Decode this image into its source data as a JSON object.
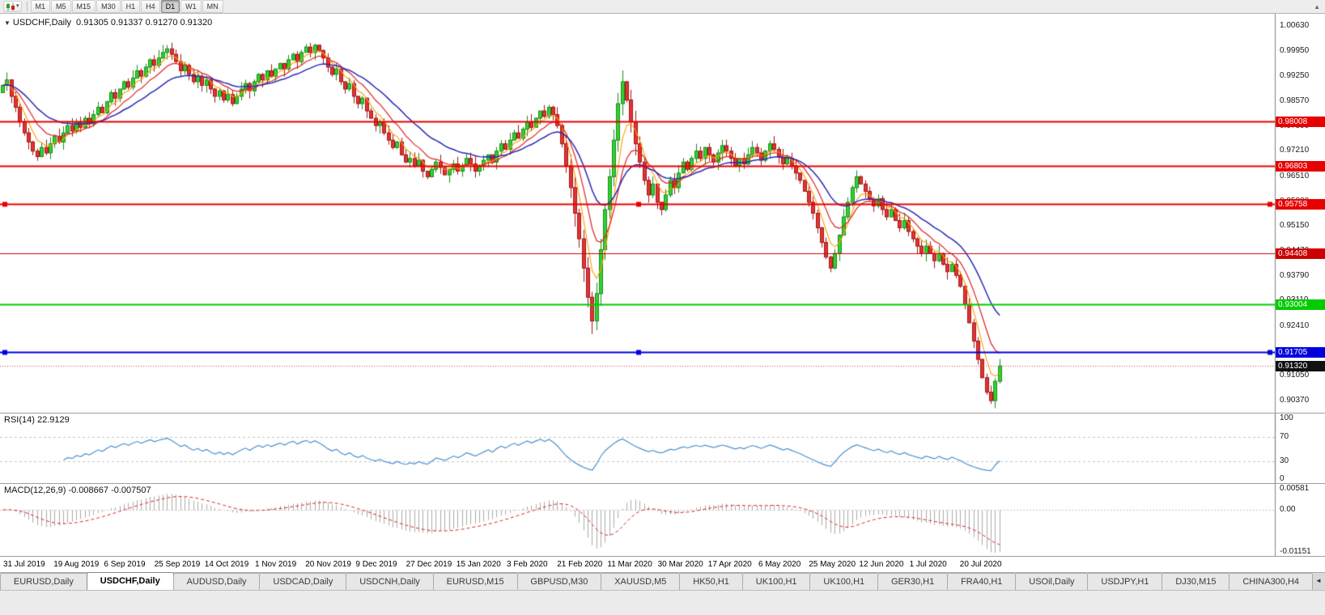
{
  "toolbar": {
    "dropdown_caret": "▾",
    "scroll_up_icon": "▲",
    "timeframes": [
      {
        "label": "M1",
        "active": false
      },
      {
        "label": "M5",
        "active": false
      },
      {
        "label": "M15",
        "active": false
      },
      {
        "label": "M30",
        "active": false
      },
      {
        "label": "H1",
        "active": false
      },
      {
        "label": "H4",
        "active": false
      },
      {
        "label": "D1",
        "active": true
      },
      {
        "label": "W1",
        "active": false
      },
      {
        "label": "MN",
        "active": false
      }
    ]
  },
  "chart": {
    "header": {
      "collapse_icon": "▼",
      "symbol_period": "USDCHF,Daily",
      "ohlc": "0.91305 0.91337 0.91270 0.91320"
    }
  },
  "chart_data": {
    "type": "candlestick+indicators",
    "symbol": "USDCHF",
    "period": "Daily",
    "price_panel": {
      "price_top": 1.0096,
      "price_bottom": 0.9004,
      "up_color": "#2fd32f",
      "up_wick": "#1c8a1c",
      "down_color": "#e23434",
      "down_wick": "#a31515",
      "y_axis_labels": [
        "1.00630",
        "0.99950",
        "0.99250",
        "0.98570",
        "0.97890",
        "0.97210",
        "0.96510",
        "0.95830",
        "0.95150",
        "0.94470",
        "0.93790",
        "0.93110",
        "0.92410",
        "0.91730",
        "0.91050",
        "0.90370"
      ],
      "first_open": 0.988,
      "closes": [
        0.99,
        0.9915,
        0.987,
        0.984,
        0.98,
        0.977,
        0.9745,
        0.972,
        0.9705,
        0.973,
        0.9715,
        0.974,
        0.976,
        0.9745,
        0.977,
        0.979,
        0.9775,
        0.98,
        0.9785,
        0.981,
        0.9795,
        0.982,
        0.984,
        0.9825,
        0.9855,
        0.988,
        0.9865,
        0.989,
        0.991,
        0.9895,
        0.992,
        0.994,
        0.9925,
        0.995,
        0.997,
        0.9955,
        0.9975,
        0.999,
        1.0,
        0.9985,
        0.9965,
        0.994,
        0.9955,
        0.993,
        0.991,
        0.9925,
        0.99,
        0.9915,
        0.989,
        0.987,
        0.9885,
        0.986,
        0.9875,
        0.985,
        0.987,
        0.989,
        0.9905,
        0.9885,
        0.991,
        0.993,
        0.9915,
        0.994,
        0.9925,
        0.9945,
        0.996,
        0.9945,
        0.997,
        0.9985,
        0.9965,
        0.999,
        1.0005,
        0.999,
        1.001,
        0.9995,
        0.9975,
        0.995,
        0.993,
        0.9945,
        0.991,
        0.989,
        0.9905,
        0.987,
        0.985,
        0.9865,
        0.983,
        0.981,
        0.979,
        0.98,
        0.977,
        0.975,
        0.973,
        0.9745,
        0.971,
        0.969,
        0.97,
        0.968,
        0.9695,
        0.9665,
        0.965,
        0.967,
        0.969,
        0.9675,
        0.9655,
        0.967,
        0.9685,
        0.9665,
        0.968,
        0.97,
        0.9685,
        0.9665,
        0.968,
        0.9695,
        0.971,
        0.969,
        0.972,
        0.974,
        0.9725,
        0.975,
        0.977,
        0.9755,
        0.978,
        0.98,
        0.9785,
        0.981,
        0.983,
        0.9815,
        0.984,
        0.982,
        0.979,
        0.974,
        0.968,
        0.962,
        0.955,
        0.948,
        0.94,
        0.932,
        0.9255,
        0.933,
        0.945,
        0.956,
        0.965,
        0.975,
        0.985,
        0.991,
        0.986,
        0.98,
        0.974,
        0.969,
        0.964,
        0.96,
        0.963,
        0.958,
        0.956,
        0.96,
        0.964,
        0.962,
        0.966,
        0.969,
        0.967,
        0.97,
        0.972,
        0.97,
        0.973,
        0.971,
        0.969,
        0.9715,
        0.9735,
        0.972,
        0.97,
        0.968,
        0.97,
        0.9685,
        0.971,
        0.973,
        0.9715,
        0.9695,
        0.972,
        0.974,
        0.9725,
        0.9705,
        0.9685,
        0.97,
        0.968,
        0.966,
        0.964,
        0.961,
        0.958,
        0.955,
        0.951,
        0.947,
        0.943,
        0.94,
        0.944,
        0.949,
        0.954,
        0.958,
        0.962,
        0.965,
        0.963,
        0.961,
        0.959,
        0.957,
        0.959,
        0.956,
        0.954,
        0.956,
        0.953,
        0.951,
        0.953,
        0.95,
        0.948,
        0.946,
        0.944,
        0.946,
        0.944,
        0.942,
        0.944,
        0.941,
        0.939,
        0.941,
        0.938,
        0.935,
        0.93,
        0.925,
        0.92,
        0.915,
        0.91,
        0.906,
        0.9037,
        0.909,
        0.9132
      ],
      "moving_averages": [
        {
          "name": "fast-ma",
          "period": 5,
          "color": "#ff9c00",
          "width": 1.1
        },
        {
          "name": "medium-ma",
          "period": 10,
          "color": "#e02020",
          "width": 1.2
        },
        {
          "name": "slow-ma",
          "period": 21,
          "color": "#2929b8",
          "width": 1.5
        }
      ],
      "hlines": [
        {
          "value": 0.98008,
          "label": "0.98008",
          "color": "#e80000",
          "width": 2,
          "selected": false
        },
        {
          "value": 0.96803,
          "label": "0.96803",
          "color": "#e80000",
          "width": 2,
          "selected": false
        },
        {
          "value": 0.95758,
          "label": "0.95758",
          "color": "#e80000",
          "width": 2,
          "selected": true
        },
        {
          "value": 0.94408,
          "label": "0.94408",
          "color": "#cc0000",
          "width": 1,
          "selected": false
        },
        {
          "value": 0.93004,
          "label": "0.93004",
          "color": "#00cc00",
          "width": 2,
          "selected": false
        },
        {
          "value": 0.91705,
          "label": "0.91705",
          "color": "#0000dd",
          "width": 2,
          "selected": true
        }
      ],
      "current_price": {
        "value": 0.9132,
        "label": "0.91320",
        "badge_color": "#111111",
        "line_color": "#cc4444"
      }
    },
    "rsi_panel": {
      "label": "RSI(14) 22.9129",
      "current_value": 22.9129,
      "period": 14,
      "levels": [
        100,
        70,
        30,
        0
      ],
      "color": "#4a90d2"
    },
    "macd_panel": {
      "label": "MACD(12,26,9) -0.008667 -0.007507",
      "macd_value": -0.008667,
      "signal_value": -0.007507,
      "fast": 12,
      "slow": 26,
      "signal": 9,
      "axis_labels": [
        "0.00581",
        "0.00",
        "-0.01151"
      ],
      "histogram_color": "#ababab",
      "signal_color": "#dd2222"
    },
    "x_axis_labels": [
      "31 Jul 2019",
      "19 Aug 2019",
      "6 Sep 2019",
      "25 Sep 2019",
      "14 Oct 2019",
      "1 Nov 2019",
      "20 Nov 2019",
      "9 Dec 2019",
      "27 Dec 2019",
      "15 Jan 2020",
      "3 Feb 2020",
      "21 Feb 2020",
      "11 Mar 2020",
      "30 Mar 2020",
      "17 Apr 2020",
      "6 May 2020",
      "25 May 2020",
      "12 Jun 2020",
      "1 Jul 2020",
      "20 Jul 2020"
    ]
  },
  "tab_bar": {
    "scroll_icon": "◄",
    "tabs": [
      {
        "label": "EURUSD,Daily",
        "active": false
      },
      {
        "label": "USDCHF,Daily",
        "active": true
      },
      {
        "label": "AUDUSD,Daily",
        "active": false
      },
      {
        "label": "USDCAD,Daily",
        "active": false
      },
      {
        "label": "USDCNH,Daily",
        "active": false
      },
      {
        "label": "EURUSD,M15",
        "active": false
      },
      {
        "label": "GBPUSD,M30",
        "active": false
      },
      {
        "label": "XAUUSD,M5",
        "active": false
      },
      {
        "label": "HK50,H1",
        "active": false
      },
      {
        "label": "UK100,H1",
        "active": false
      },
      {
        "label": "UK100,H1",
        "active": false
      },
      {
        "label": "GER30,H1",
        "active": false
      },
      {
        "label": "FRA40,H1",
        "active": false
      },
      {
        "label": "USOil,Daily",
        "active": false
      },
      {
        "label": "USDJPY,H1",
        "active": false
      },
      {
        "label": "DJ30,M15",
        "active": false
      },
      {
        "label": "CHINA300,H4",
        "active": false
      }
    ]
  }
}
